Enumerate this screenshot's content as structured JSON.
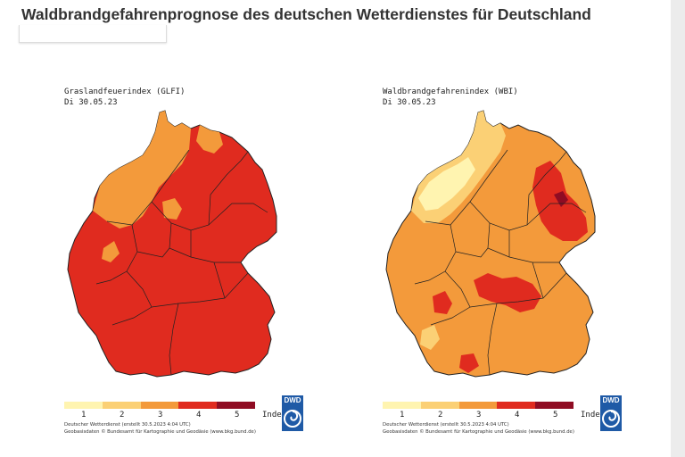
{
  "page": {
    "title": "Waldbrandgefahrenprognose des deutschen Wetterdienstes für Deutschland"
  },
  "maps": [
    {
      "name": "Graslandfeuerindex (GLFI)",
      "date": "Di 30.05.23",
      "legend_labels": [
        "1",
        "2",
        "3",
        "4",
        "5"
      ],
      "legend_unit": "Index",
      "legend_colors": [
        "#fff4b0",
        "#fbd075",
        "#f39a3b",
        "#e02b1f",
        "#8f0c23"
      ],
      "credit_line1": "Deutscher Wetterdienst  (erstellt 30.5.2023 4:04 UTC)",
      "credit_line2": "Geobasisdaten © Bundesamt für Kartographie und Geodäsie (www.bkg.bund.de)",
      "logo_text": "DWD",
      "dominant_level": 4
    },
    {
      "name": "Waldbrandgefahrenindex (WBI)",
      "date": "Di 30.05.23",
      "legend_labels": [
        "1",
        "2",
        "3",
        "4",
        "5"
      ],
      "legend_unit": "Index",
      "legend_colors": [
        "#fff4b0",
        "#fbd075",
        "#f39a3b",
        "#e02b1f",
        "#8f0c23"
      ],
      "credit_line1": "Deutscher Wetterdienst  (erstellt 30.5.2023 4:04 UTC)",
      "credit_line2": "Geobasisdaten © Bundesamt für Kartographie und Geodäsie (www.bkg.bund.de)",
      "logo_text": "DWD",
      "dominant_level": 3
    }
  ]
}
